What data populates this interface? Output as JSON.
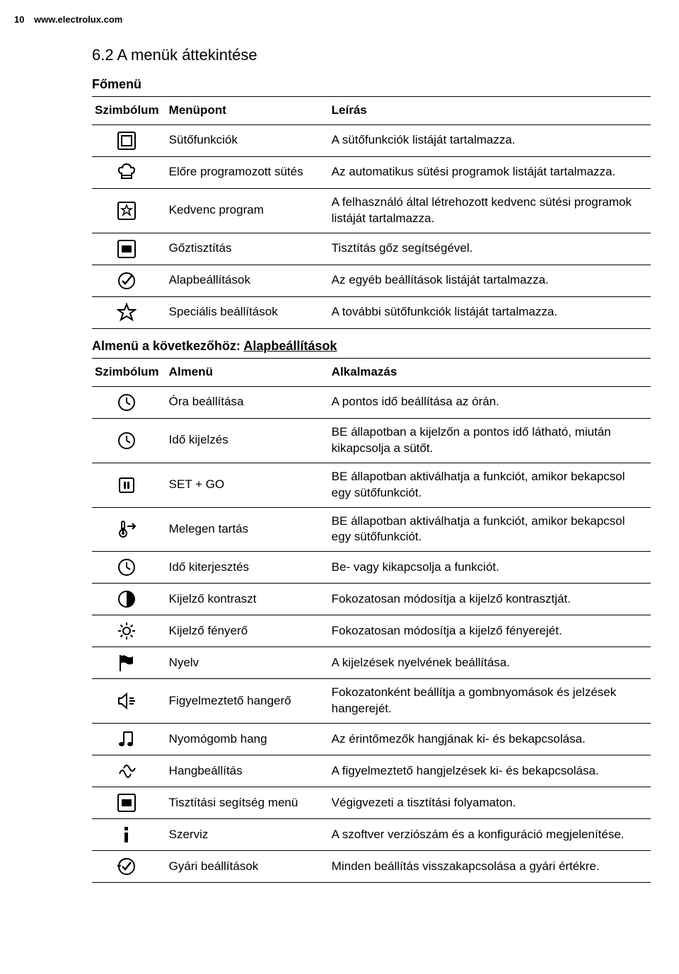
{
  "header": {
    "page_number": "10",
    "site": "www.electrolux.com"
  },
  "section": {
    "title": "6.2 A menük áttekintése"
  },
  "main_menu": {
    "label": "Főmenü",
    "headers": {
      "symbol": "Szimbólum",
      "item": "Menüpont",
      "desc": "Leírás"
    },
    "rows": [
      {
        "icon": "oven-box",
        "item": "Sütőfunkciók",
        "desc": "A sütőfunkciók listáját tartalmazza."
      },
      {
        "icon": "chef-hat",
        "item": "Előre programozott sütés",
        "desc": "Az automatikus sütési programok listáját tartalmazza."
      },
      {
        "icon": "star-box",
        "item": "Kedvenc program",
        "desc": "A felhasználó által létrehozott kedvenc sütési programok listáját tartalmazza."
      },
      {
        "icon": "grid-box",
        "item": "Gőztisztítás",
        "desc": "Tisztítás gőz segítségével."
      },
      {
        "icon": "check-circle",
        "item": "Alapbeállítások",
        "desc": "Az egyéb beállítások listáját tartalmazza."
      },
      {
        "icon": "star",
        "item": "Speciális beállítások",
        "desc": "A további sütőfunkciók listáját tartalmazza."
      }
    ]
  },
  "sub_menu": {
    "label_prefix": "Almenü a következőhöz: ",
    "label_link": "Alapbeállítások",
    "headers": {
      "symbol": "Szimbólum",
      "item": "Almenü",
      "desc": "Alkalmazás"
    },
    "rows": [
      {
        "icon": "clock",
        "item": "Óra beállítása",
        "desc": "A pontos idő beállítása az órán."
      },
      {
        "icon": "clock",
        "item": "Idő kijelzés",
        "desc": "BE állapotban a kijelzőn a pontos idő látható, miután kikapcsolja a sütőt."
      },
      {
        "icon": "pause-box",
        "item": "SET + GO",
        "desc": "BE állapotban aktiválhatja a funkciót, amikor bekapcsol egy sütőfunkciót."
      },
      {
        "icon": "thermometer-arrow",
        "item": "Melegen tartás",
        "desc": "BE állapotban aktiválhatja a funkciót, amikor bekapcsol egy sütőfunkciót."
      },
      {
        "icon": "clock",
        "item": "Idő kiterjesztés",
        "desc": "Be- vagy kikapcsolja a funkciót."
      },
      {
        "icon": "contrast",
        "item": "Kijelző kontraszt",
        "desc": "Fokozatosan módosítja a kijelző kontrasztját."
      },
      {
        "icon": "brightness",
        "item": "Kijelző fényerő",
        "desc": "Fokozatosan módosítja a kijelző fényerejét."
      },
      {
        "icon": "flag",
        "item": "Nyelv",
        "desc": "A kijelzések nyelvének beállítása."
      },
      {
        "icon": "speaker",
        "item": "Figyelmeztető hangerő",
        "desc": "Fokozatonként beállítja a gombnyomások és jelzések hangerejét."
      },
      {
        "icon": "music-note",
        "item": "Nyomógomb hang",
        "desc": "Az érintőmezők hangjának ki- és bekapcsolása."
      },
      {
        "icon": "sound-waves",
        "item": "Hangbeállítás",
        "desc": "A figyelmeztető hangjelzések ki- és bekapcsolása."
      },
      {
        "icon": "grid-box",
        "item": "Tisztítási segítség menü",
        "desc": "Végigvezeti a tisztítási folyamaton."
      },
      {
        "icon": "info",
        "item": "Szerviz",
        "desc": "A szoftver verziószám és a konfiguráció megjelenítése."
      },
      {
        "icon": "reset-check",
        "item": "Gyári beállítások",
        "desc": "Minden beállítás visszakapcsolása a gyári értékre."
      }
    ]
  },
  "icons": {
    "stroke": "#000000",
    "fill_none": "none",
    "fill_black": "#000000"
  }
}
